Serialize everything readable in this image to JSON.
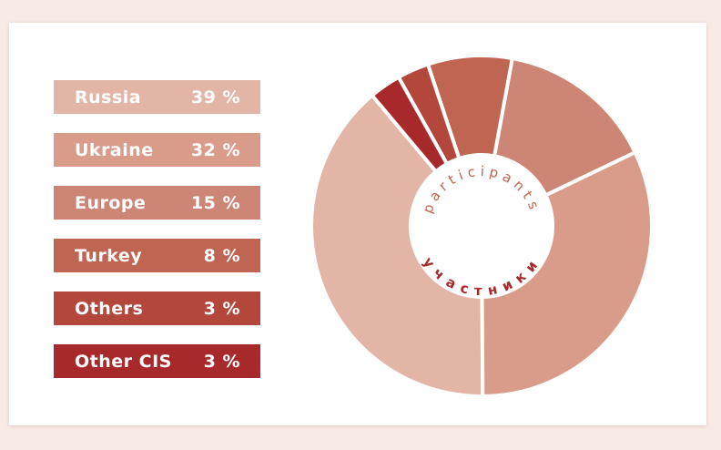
{
  "chart_data": {
    "type": "donut",
    "categories": [
      "Russia",
      "Ukraine",
      "Europe",
      "Turkey",
      "Others",
      "Other CIS"
    ],
    "values": [
      39,
      32,
      15,
      8,
      3,
      3
    ],
    "value_labels": [
      "39 %",
      "32 %",
      "15 %",
      "8 %",
      "3 %",
      "3 %"
    ],
    "colors": [
      "#e3b5a6",
      "#d99c8b",
      "#cd8675",
      "#c06552",
      "#b4473b",
      "#a8292b"
    ],
    "center_label_top": "participants",
    "center_label_bottom": "участники"
  }
}
